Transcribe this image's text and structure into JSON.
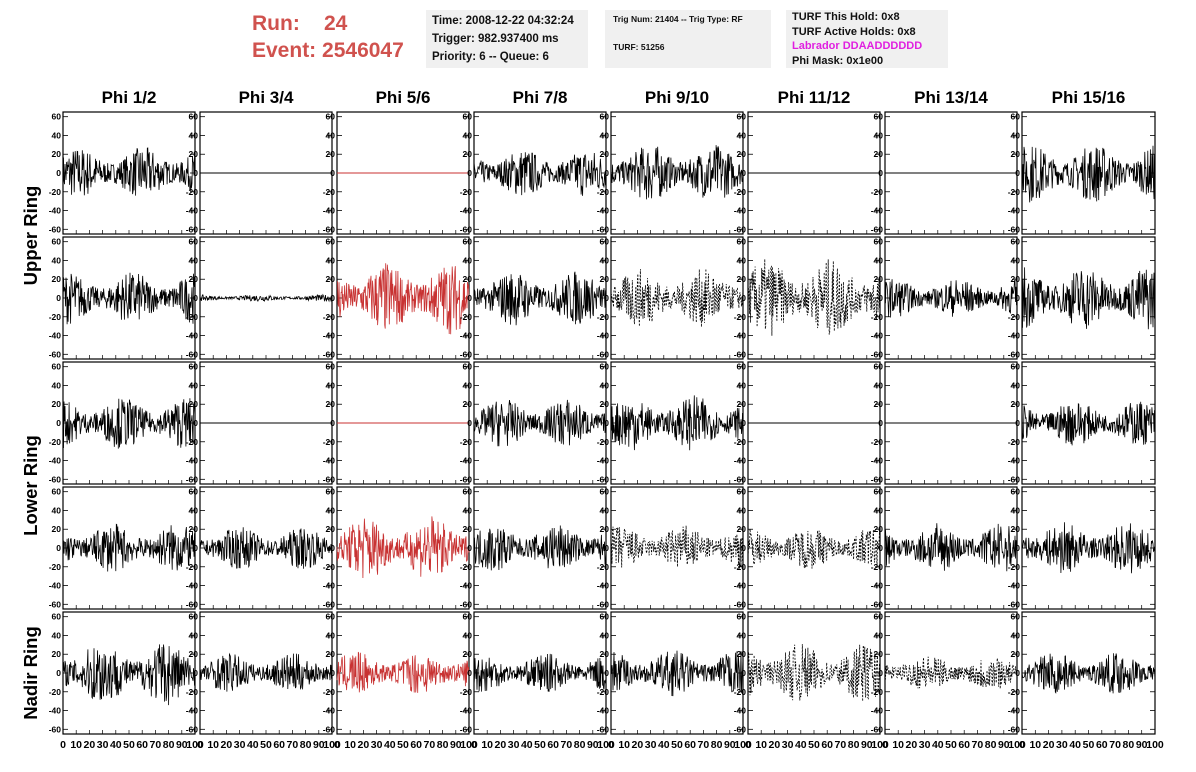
{
  "header": {
    "run_label": "Run:",
    "run_value": "24",
    "event_label": "Event:",
    "event_value": "2546047",
    "time": "Time: 2008-12-22 04:32:24",
    "trigger": "Trigger: 982.937400 ms",
    "priority": "Priority: 6 -- Queue: 6",
    "trig_num": "Trig Num: 21404 -- Trig Type: RF",
    "turf": "TURF: 51256",
    "turf_this_hold": "TURF This Hold: 0x8",
    "turf_active_holds": "TURF Active Holds: 0x8",
    "labrador": "Labrador DDAADDDDDD",
    "phi_mask": "Phi Mask: 0x1e00"
  },
  "chart_data": {
    "type": "line",
    "columns": [
      "Phi 1/2",
      "Phi 3/4",
      "Phi 5/6",
      "Phi 7/8",
      "Phi 9/10",
      "Phi 11/12",
      "Phi 13/14",
      "Phi 15/16"
    ],
    "ring_labels": [
      {
        "name": "Upper Ring",
        "rows": [
          0,
          1
        ]
      },
      {
        "name": "Lower Ring",
        "rows": [
          2,
          3
        ]
      },
      {
        "name": "Nadir Ring",
        "rows": [
          4
        ]
      }
    ],
    "xlim": [
      0,
      100
    ],
    "ylim": [
      -65,
      65
    ],
    "yticks": [
      -60,
      -40,
      -20,
      0,
      20,
      40,
      60
    ],
    "xticks": [
      0,
      10,
      20,
      30,
      40,
      50,
      60,
      70,
      80,
      90,
      100
    ],
    "x_tick_labels": [
      "0",
      "10",
      "20",
      "30",
      "40",
      "50",
      "60",
      "70",
      "80",
      "90",
      "100"
    ],
    "colors": {
      "normal": "#000000",
      "highlight": "#c83232"
    },
    "panels": [
      [
        {
          "amp": 16,
          "style": "solid",
          "color": "normal"
        },
        {
          "amp": 0,
          "style": "solid",
          "color": "normal"
        },
        {
          "amp": 0,
          "style": "solid",
          "color": "highlight"
        },
        {
          "amp": 15,
          "style": "solid",
          "color": "normal"
        },
        {
          "amp": 18,
          "style": "solid",
          "color": "normal"
        },
        {
          "amp": 0,
          "style": "solid",
          "color": "normal"
        },
        {
          "amp": 0,
          "style": "solid",
          "color": "normal"
        },
        {
          "amp": 18,
          "style": "solid",
          "color": "normal"
        }
      ],
      [
        {
          "amp": 16,
          "style": "solid",
          "color": "normal"
        },
        {
          "amp": 2,
          "style": "solid",
          "color": "normal"
        },
        {
          "amp": 22,
          "style": "solid",
          "color": "highlight"
        },
        {
          "amp": 17,
          "style": "solid",
          "color": "normal"
        },
        {
          "amp": 18,
          "style": "dashed",
          "color": "normal"
        },
        {
          "amp": 24,
          "style": "dashed",
          "color": "normal"
        },
        {
          "amp": 12,
          "style": "solid",
          "color": "normal"
        },
        {
          "amp": 20,
          "style": "solid",
          "color": "normal"
        }
      ],
      [
        {
          "amp": 16,
          "style": "solid",
          "color": "normal"
        },
        {
          "amp": 0,
          "style": "solid",
          "color": "normal"
        },
        {
          "amp": 0,
          "style": "solid",
          "color": "highlight"
        },
        {
          "amp": 15,
          "style": "solid",
          "color": "normal"
        },
        {
          "amp": 17,
          "style": "solid",
          "color": "normal"
        },
        {
          "amp": 0,
          "style": "solid",
          "color": "normal"
        },
        {
          "amp": 0,
          "style": "solid",
          "color": "normal"
        },
        {
          "amp": 14,
          "style": "solid",
          "color": "normal"
        }
      ],
      [
        {
          "amp": 15,
          "style": "solid",
          "color": "normal"
        },
        {
          "amp": 13,
          "style": "solid",
          "color": "normal"
        },
        {
          "amp": 20,
          "style": "solid",
          "color": "highlight"
        },
        {
          "amp": 15,
          "style": "solid",
          "color": "normal"
        },
        {
          "amp": 14,
          "style": "dashed",
          "color": "normal"
        },
        {
          "amp": 13,
          "style": "dashed",
          "color": "normal"
        },
        {
          "amp": 15,
          "style": "solid",
          "color": "normal"
        },
        {
          "amp": 16,
          "style": "solid",
          "color": "normal"
        }
      ],
      [
        {
          "amp": 20,
          "style": "solid",
          "color": "normal"
        },
        {
          "amp": 12,
          "style": "solid",
          "color": "normal"
        },
        {
          "amp": 13,
          "style": "solid",
          "color": "highlight"
        },
        {
          "amp": 12,
          "style": "solid",
          "color": "normal"
        },
        {
          "amp": 14,
          "style": "solid",
          "color": "normal"
        },
        {
          "amp": 18,
          "style": "dashed",
          "color": "normal"
        },
        {
          "amp": 11,
          "style": "dashed",
          "color": "normal"
        },
        {
          "amp": 13,
          "style": "solid",
          "color": "normal"
        }
      ]
    ]
  }
}
